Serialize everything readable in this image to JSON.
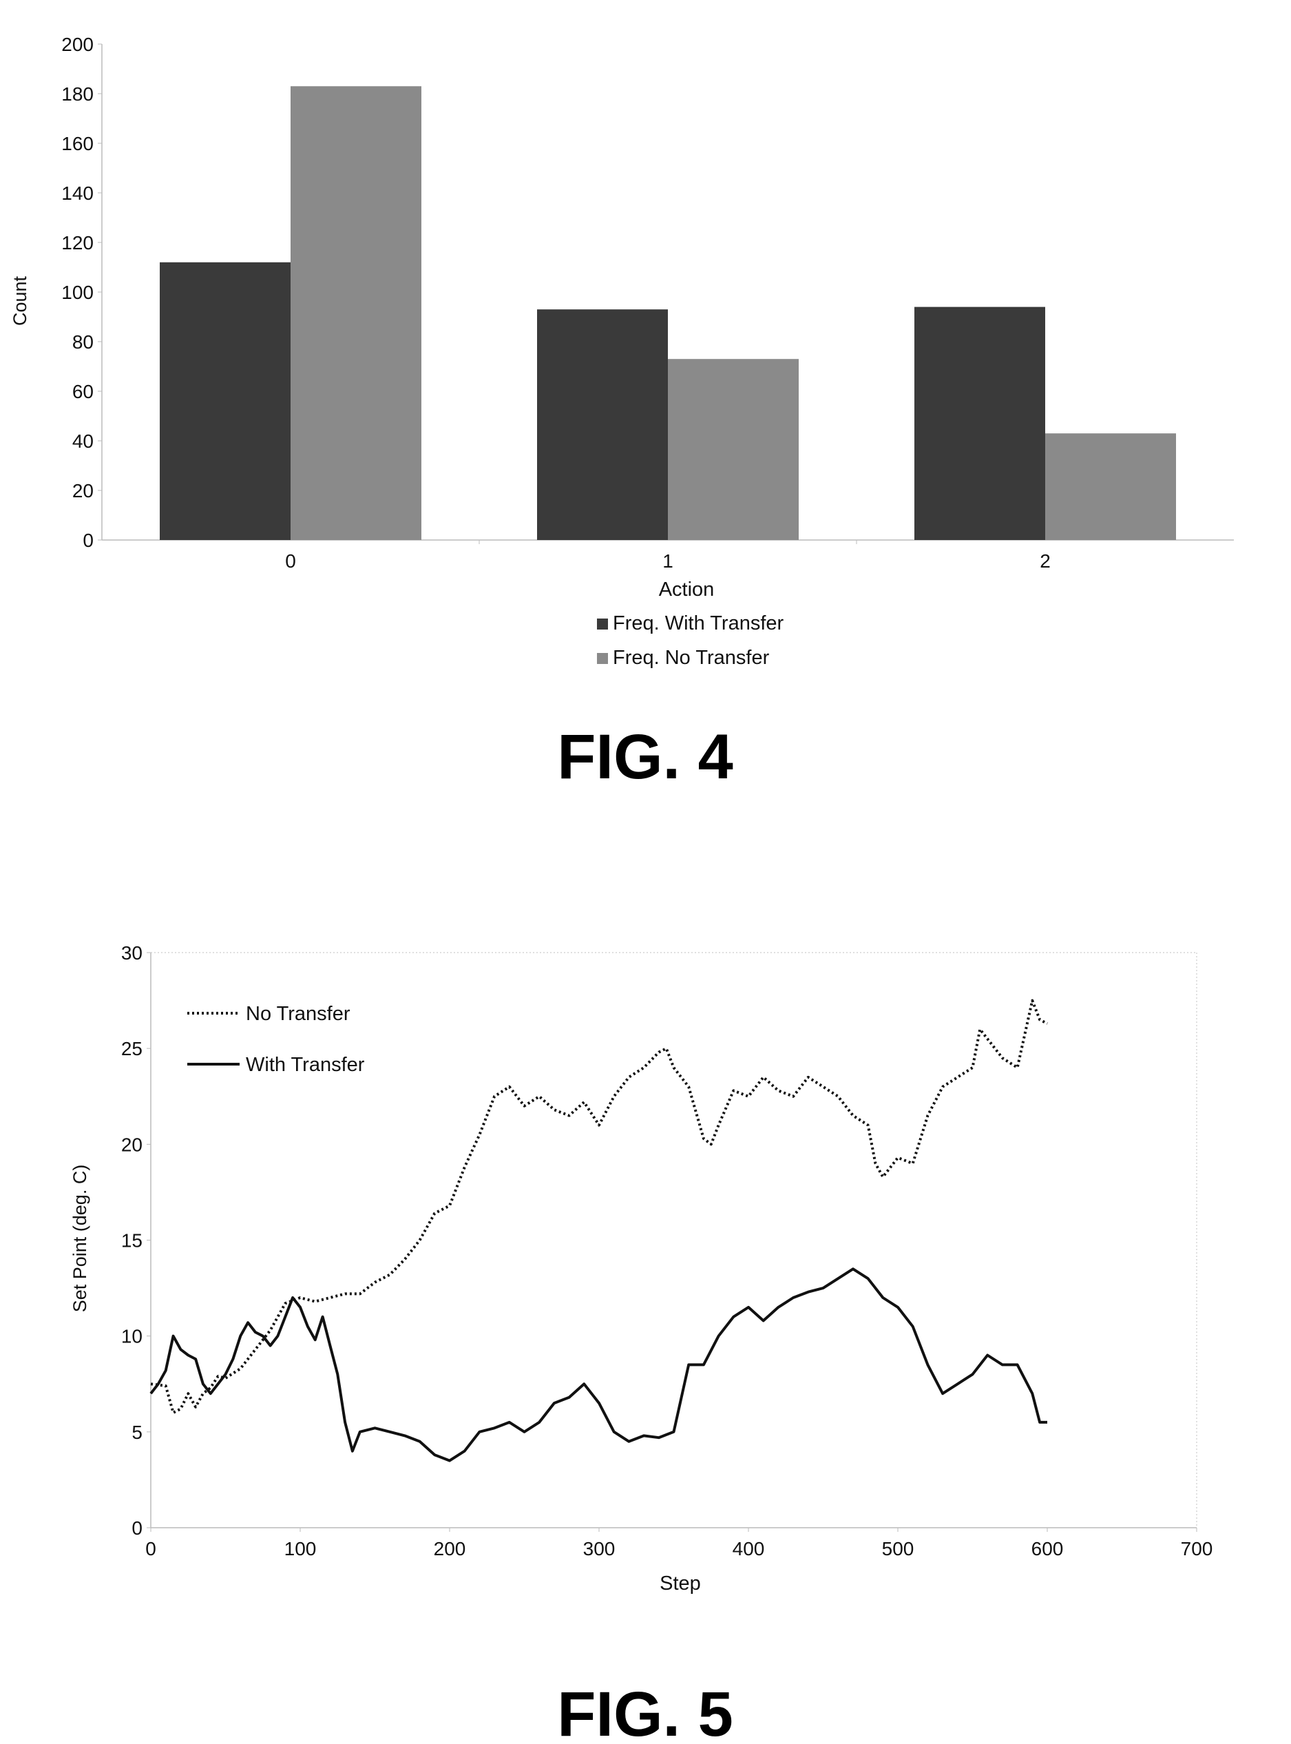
{
  "figures": [
    {
      "label": "FIG. 4"
    },
    {
      "label": "FIG. 5"
    }
  ],
  "chart_data": [
    {
      "type": "bar",
      "title": "",
      "xlabel": "Action",
      "ylabel": "Count",
      "categories": [
        "0",
        "1",
        "2"
      ],
      "ylim": [
        0,
        200
      ],
      "yticks": [
        0,
        20,
        40,
        60,
        80,
        100,
        120,
        140,
        160,
        180,
        200
      ],
      "grid": false,
      "legend_position": "bottom",
      "series": [
        {
          "name": "Freq. With Transfer",
          "values": [
            112,
            93,
            94
          ],
          "color": "#3a3a3a"
        },
        {
          "name": "Freq. No Transfer",
          "values": [
            183,
            73,
            43
          ],
          "color": "#8a8a8a"
        }
      ]
    },
    {
      "type": "line",
      "title": "",
      "xlabel": "Step",
      "ylabel": "Set Point (deg. C)",
      "xlim": [
        0,
        700
      ],
      "ylim": [
        0,
        30
      ],
      "xticks": [
        0,
        100,
        200,
        300,
        400,
        500,
        600,
        700
      ],
      "yticks": [
        0,
        5,
        10,
        15,
        20,
        25,
        30
      ],
      "grid": false,
      "legend_position": "top-left",
      "series": [
        {
          "name": "No Transfer",
          "style": "dotted",
          "x": [
            0,
            10,
            15,
            20,
            25,
            30,
            35,
            40,
            45,
            50,
            60,
            70,
            80,
            90,
            100,
            110,
            120,
            130,
            140,
            150,
            160,
            170,
            180,
            190,
            200,
            210,
            220,
            230,
            240,
            250,
            260,
            270,
            280,
            290,
            300,
            310,
            320,
            330,
            340,
            345,
            350,
            360,
            370,
            375,
            380,
            390,
            400,
            410,
            420,
            430,
            440,
            450,
            460,
            470,
            480,
            485,
            490,
            500,
            510,
            520,
            530,
            540,
            550,
            555,
            560,
            570,
            580,
            590,
            595,
            600
          ],
          "y": [
            7.5,
            7.4,
            6.0,
            6.2,
            7.0,
            6.3,
            7.0,
            7.3,
            7.9,
            7.8,
            8.3,
            9.3,
            10.3,
            11.7,
            12.0,
            11.8,
            12.0,
            12.2,
            12.2,
            12.8,
            13.2,
            14.0,
            15.0,
            16.4,
            16.8,
            18.8,
            20.5,
            22.5,
            23.0,
            22.0,
            22.5,
            21.8,
            21.5,
            22.2,
            21.0,
            22.5,
            23.5,
            24.0,
            24.8,
            25.0,
            24.0,
            23.0,
            20.3,
            20.0,
            21.0,
            22.8,
            22.5,
            23.5,
            22.8,
            22.5,
            23.5,
            23.0,
            22.5,
            21.5,
            21.0,
            19.0,
            18.3,
            19.3,
            19.0,
            21.5,
            23.0,
            23.5,
            24.0,
            26.0,
            25.5,
            24.5,
            24.0,
            27.5,
            26.5,
            26.3
          ]
        },
        {
          "name": "With Transfer",
          "style": "solid",
          "x": [
            0,
            5,
            10,
            15,
            20,
            25,
            30,
            35,
            40,
            45,
            50,
            55,
            60,
            65,
            70,
            75,
            80,
            85,
            90,
            95,
            100,
            105,
            110,
            115,
            120,
            125,
            130,
            135,
            140,
            150,
            160,
            170,
            180,
            190,
            200,
            210,
            220,
            230,
            240,
            250,
            260,
            270,
            280,
            290,
            300,
            310,
            320,
            330,
            340,
            350,
            360,
            370,
            380,
            390,
            400,
            410,
            420,
            430,
            440,
            450,
            460,
            470,
            480,
            490,
            500,
            510,
            520,
            530,
            540,
            550,
            560,
            570,
            580,
            590,
            595,
            600
          ],
          "y": [
            7.0,
            7.5,
            8.2,
            10.0,
            9.3,
            9.0,
            8.8,
            7.5,
            7.0,
            7.5,
            8.0,
            8.8,
            10.0,
            10.7,
            10.2,
            10.0,
            9.5,
            10.0,
            11.0,
            12.0,
            11.5,
            10.5,
            9.8,
            11.0,
            9.5,
            8.0,
            5.5,
            4.0,
            5.0,
            5.2,
            5.0,
            4.8,
            4.5,
            3.8,
            3.5,
            4.0,
            5.0,
            5.2,
            5.5,
            5.0,
            5.5,
            6.5,
            6.8,
            7.5,
            6.5,
            5.0,
            4.5,
            4.8,
            4.7,
            5.0,
            8.5,
            8.5,
            10.0,
            11.0,
            11.5,
            10.8,
            11.5,
            12.0,
            12.3,
            12.5,
            13.0,
            13.5,
            13.0,
            12.0,
            11.5,
            10.5,
            8.5,
            7.0,
            7.5,
            8.0,
            9.0,
            8.5,
            8.5,
            7.0,
            5.5,
            5.5
          ]
        }
      ]
    }
  ]
}
